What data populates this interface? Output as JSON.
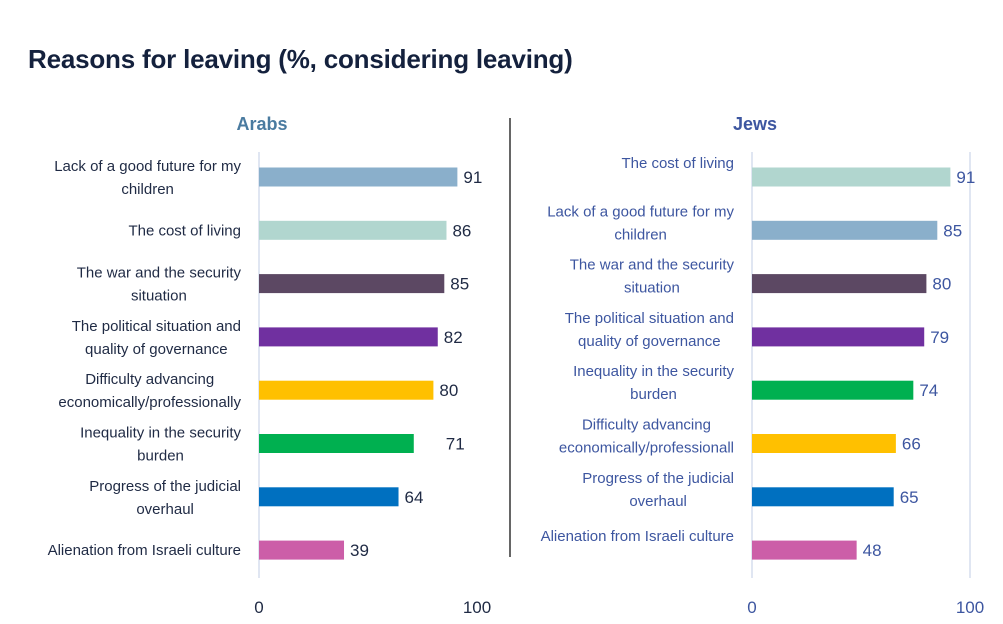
{
  "title": "Reasons for leaving (%, considering leaving)",
  "colors": {
    "title": "#14213d",
    "arabs_heading": "#4a7ba0",
    "jews_heading": "#3d56a0",
    "arabs_text": "#1f2a44",
    "jews_text": "#3d56a0",
    "axis": "#cfd8ea",
    "divider": "#000000"
  },
  "chart_data": [
    {
      "type": "bar",
      "orientation": "horizontal",
      "title": "Arabs",
      "xlim": [
        0,
        100
      ],
      "xticks": [
        "0",
        "100"
      ],
      "grid": false,
      "categories": [
        [
          "Lack of a good future for my",
          "children"
        ],
        [
          "The cost of living"
        ],
        [
          "The war and the security",
          "situation"
        ],
        [
          "The political situation and",
          "quality of governance"
        ],
        [
          "Difficulty advancing",
          "economically/professionally"
        ],
        [
          "Inequality in the security",
          "burden"
        ],
        [
          "Progress of the judicial",
          "overhaul"
        ],
        [
          "Alienation from Israeli culture"
        ]
      ],
      "values": [
        91,
        86,
        85,
        82,
        80,
        71,
        64,
        39
      ],
      "bar_colors": [
        "#8aafcb",
        "#b1d6cf",
        "#5c4863",
        "#7030a0",
        "#ffc000",
        "#00b050",
        "#0070c0",
        "#cc5ea8"
      ]
    },
    {
      "type": "bar",
      "orientation": "horizontal",
      "title": "Jews",
      "xlim": [
        0,
        100
      ],
      "xticks": [
        "0",
        "100"
      ],
      "grid": false,
      "categories": [
        [
          "The cost of living"
        ],
        [
          "Lack of a good future for my",
          "children"
        ],
        [
          "The war and the security",
          "situation"
        ],
        [
          "The political situation and",
          "quality of governance"
        ],
        [
          "Inequality in the security",
          "burden"
        ],
        [
          "Difficulty advancing",
          "economically/professionall"
        ],
        [
          "Progress of the judicial",
          "overhaul"
        ],
        [
          "Alienation from Israeli culture"
        ]
      ],
      "values": [
        91,
        85,
        80,
        79,
        74,
        66,
        65,
        48
      ],
      "bar_colors": [
        "#b1d6cf",
        "#8aafcb",
        "#5c4863",
        "#7030a0",
        "#00b050",
        "#ffc000",
        "#0070c0",
        "#cc5ea8"
      ]
    }
  ]
}
